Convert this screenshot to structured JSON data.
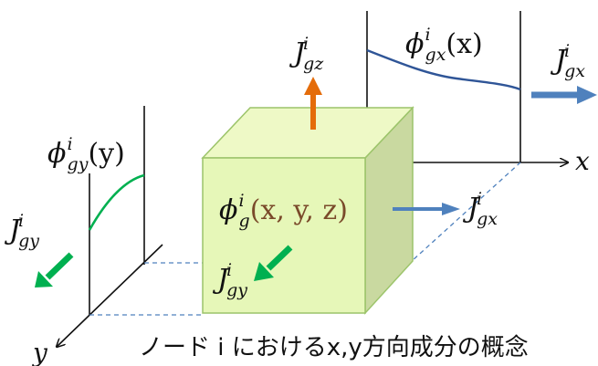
{
  "labels": {
    "Jgz": {
      "main": "J",
      "sup": "i",
      "sub": "gz"
    },
    "phi_gx": {
      "main": "ϕ",
      "sup": "i",
      "sub": "gx",
      "arg": "(x)"
    },
    "Jgx_right": {
      "main": "J",
      "sup": "i",
      "sub": "gx"
    },
    "x_axis": "x",
    "phi_gy": {
      "main": "ϕ",
      "sup": "i",
      "sub": "gy",
      "arg": "(y)"
    },
    "Jgy_left": {
      "main": "J",
      "sup": "i",
      "sub": "gy"
    },
    "phi_g": {
      "main": "ϕ",
      "sup": "i",
      "sub": "g",
      "arg": "(x, y, z)"
    },
    "Jgx_box": {
      "main": "J",
      "sup": "i",
      "sub": "gx"
    },
    "Jgy_box": {
      "main": "J",
      "sup": "i",
      "sub": "gy"
    },
    "y_axis": "y",
    "caption": "ノード i におけるx,y方向成分の概念"
  },
  "colors": {
    "cube_front": "#e6f7b8",
    "cube_top": "#eef9c6",
    "cube_side": "#c9d9a0",
    "cube_edge": "#9cc46a",
    "arrow_blue": "#4f81bd",
    "arrow_orange": "#e46c0a",
    "arrow_green": "#00b050",
    "curve_navy": "#2f5597",
    "curve_green": "#00b050",
    "axis": "#111111",
    "dashed": "#4f81bd",
    "phi_arg_brown": "#7a4a2a"
  }
}
